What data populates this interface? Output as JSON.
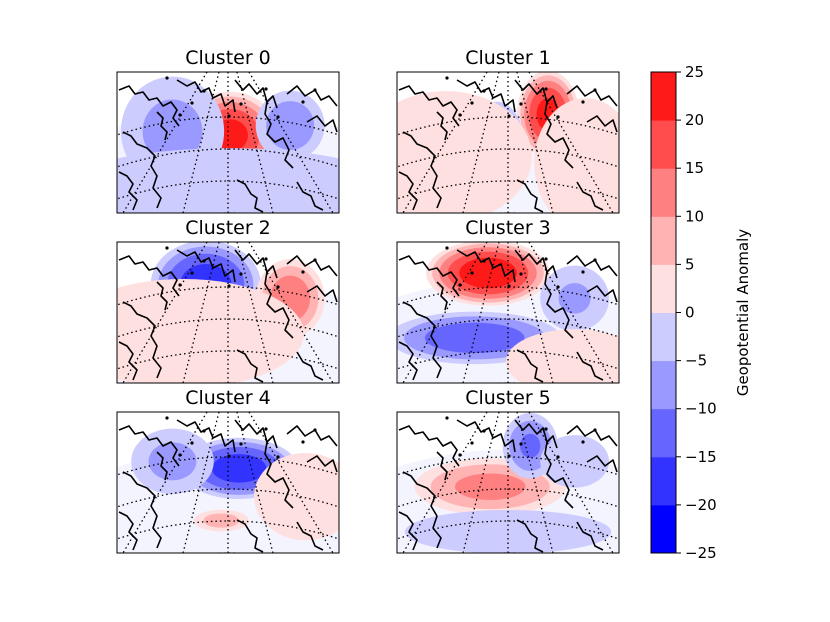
{
  "chart_data": {
    "type": "contour-map-grid",
    "panels": [
      {
        "title": "Cluster 0",
        "blobs": [
          {
            "cx": 0.51,
            "cy": 0.45,
            "value": 22,
            "sx": 0.14,
            "sy": 0.2
          },
          {
            "cx": 0.78,
            "cy": 0.38,
            "value": -9,
            "sx": 0.1,
            "sy": 0.16
          },
          {
            "cx": 0.25,
            "cy": 0.42,
            "value": -7,
            "sx": 0.15,
            "sy": 0.25
          },
          {
            "cx": 0.5,
            "cy": 0.85,
            "value": -4,
            "sx": 0.5,
            "sy": 0.2
          }
        ]
      },
      {
        "title": "Cluster 1",
        "blobs": [
          {
            "cx": 0.68,
            "cy": 0.3,
            "value": 22,
            "sx": 0.09,
            "sy": 0.2
          },
          {
            "cx": 0.45,
            "cy": 0.52,
            "value": -7,
            "sx": 0.08,
            "sy": 0.2
          },
          {
            "cx": 0.22,
            "cy": 0.6,
            "value": 3,
            "sx": 0.25,
            "sy": 0.3
          },
          {
            "cx": 0.85,
            "cy": 0.65,
            "value": 3,
            "sx": 0.15,
            "sy": 0.3
          }
        ]
      },
      {
        "title": "Cluster 2",
        "blobs": [
          {
            "cx": 0.4,
            "cy": 0.3,
            "value": -18,
            "sx": 0.16,
            "sy": 0.2
          },
          {
            "cx": 0.78,
            "cy": 0.4,
            "value": 14,
            "sx": 0.1,
            "sy": 0.18
          },
          {
            "cx": 0.63,
            "cy": 0.58,
            "value": 9,
            "sx": 0.08,
            "sy": 0.08
          },
          {
            "cx": 0.3,
            "cy": 0.65,
            "value": 3,
            "sx": 0.35,
            "sy": 0.25
          }
        ]
      },
      {
        "title": "Cluster 3",
        "blobs": [
          {
            "cx": 0.41,
            "cy": 0.22,
            "value": 24,
            "sx": 0.18,
            "sy": 0.15
          },
          {
            "cx": 0.35,
            "cy": 0.68,
            "value": -14,
            "sx": 0.25,
            "sy": 0.12
          },
          {
            "cx": 0.8,
            "cy": 0.4,
            "value": -6,
            "sx": 0.1,
            "sy": 0.15
          },
          {
            "cx": 0.8,
            "cy": 0.85,
            "value": 3,
            "sx": 0.2,
            "sy": 0.15
          }
        ]
      },
      {
        "title": "Cluster 4",
        "blobs": [
          {
            "cx": 0.55,
            "cy": 0.4,
            "value": -18,
            "sx": 0.17,
            "sy": 0.14
          },
          {
            "cx": 0.25,
            "cy": 0.35,
            "value": -7,
            "sx": 0.12,
            "sy": 0.15
          },
          {
            "cx": 0.47,
            "cy": 0.77,
            "value": 8,
            "sx": 0.08,
            "sy": 0.05
          },
          {
            "cx": 0.85,
            "cy": 0.6,
            "value": 4,
            "sx": 0.15,
            "sy": 0.2
          }
        ]
      },
      {
        "title": "Cluster 5",
        "blobs": [
          {
            "cx": 0.42,
            "cy": 0.53,
            "value": 12,
            "sx": 0.22,
            "sy": 0.13
          },
          {
            "cx": 0.6,
            "cy": 0.24,
            "value": -11,
            "sx": 0.08,
            "sy": 0.15
          },
          {
            "cx": 0.8,
            "cy": 0.35,
            "value": -5,
            "sx": 0.1,
            "sy": 0.12
          },
          {
            "cx": 0.5,
            "cy": 0.85,
            "value": -3,
            "sx": 0.3,
            "sy": 0.1
          }
        ]
      }
    ],
    "colorbar": {
      "label": "Geopotential Anomaly",
      "levels": [
        -25,
        -20,
        -15,
        -10,
        -5,
        0,
        5,
        10,
        15,
        20,
        25
      ],
      "tick_labels": [
        "−25",
        "−20",
        "−15",
        "−10",
        "−5",
        "0",
        "5",
        "10",
        "15",
        "20",
        "25"
      ],
      "colors": [
        "#0000ff",
        "#3333ff",
        "#6666ff",
        "#9999ff",
        "#ccccff",
        "#ffe0e0",
        "#ffb3b3",
        "#ff8080",
        "#ff4d4d",
        "#ff1a1a"
      ]
    }
  }
}
